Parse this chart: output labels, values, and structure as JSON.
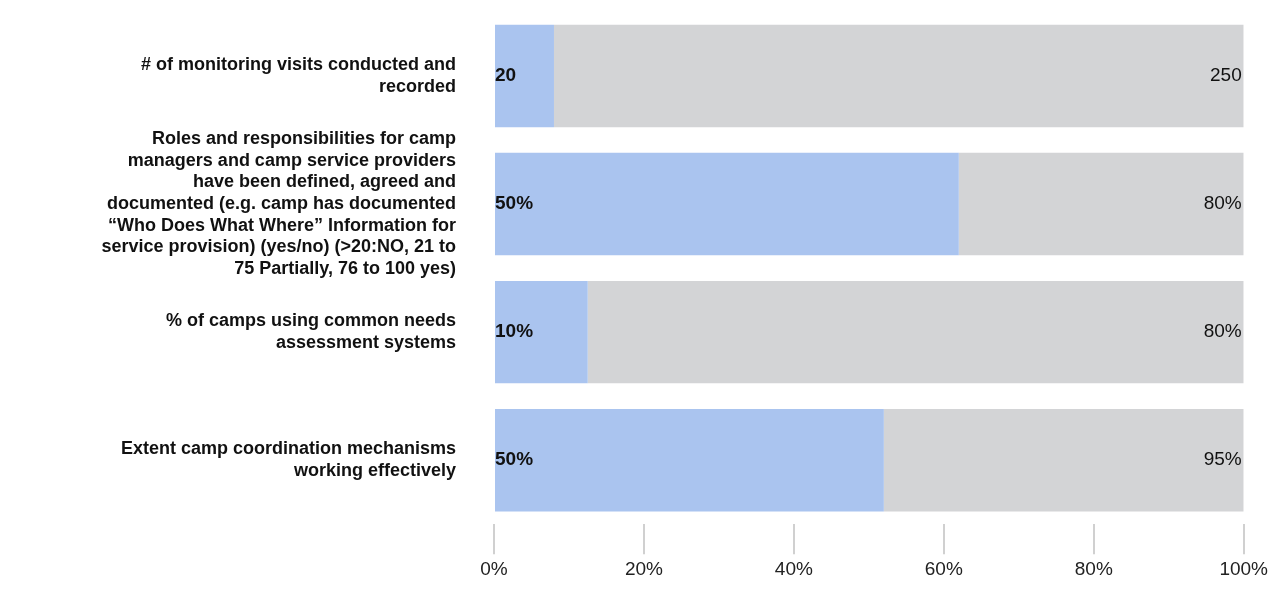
{
  "chart_data": {
    "type": "bar",
    "orientation": "horizontal",
    "stacked": true,
    "categories": [
      "# of monitoring visits conducted and recorded",
      "Roles and responsibilities for camp managers and camp service providers have been defined, agreed and documented (e.g. camp has documented “Who Does What Where” Information for service provision) (yes/no) (>20:NO, 21 to 75 Partially, 76 to 100 yes)",
      "% of camps using common needs assessment systems",
      "Extent camp coordination mechanisms working effectively"
    ],
    "series": [
      {
        "color": "#aac4ef",
        "values": [
          8,
          62,
          12.5,
          52
        ]
      },
      {
        "color": "#d3d4d6",
        "values": [
          92,
          38,
          87.5,
          48
        ]
      }
    ],
    "annotations": [
      "20",
      "250",
      "50%",
      "80%",
      "10%",
      "80%",
      "50%",
      "95%"
    ],
    "xlim": [
      0,
      100
    ],
    "xticks": [
      {
        "value": 0,
        "label": "0%"
      },
      {
        "value": 20,
        "label": "20%"
      },
      {
        "value": 40,
        "label": "40%"
      },
      {
        "value": 60,
        "label": "60%"
      },
      {
        "value": 80,
        "label": "80%"
      },
      {
        "value": 100,
        "label": "100%"
      }
    ],
    "grid": false,
    "legend": false
  }
}
